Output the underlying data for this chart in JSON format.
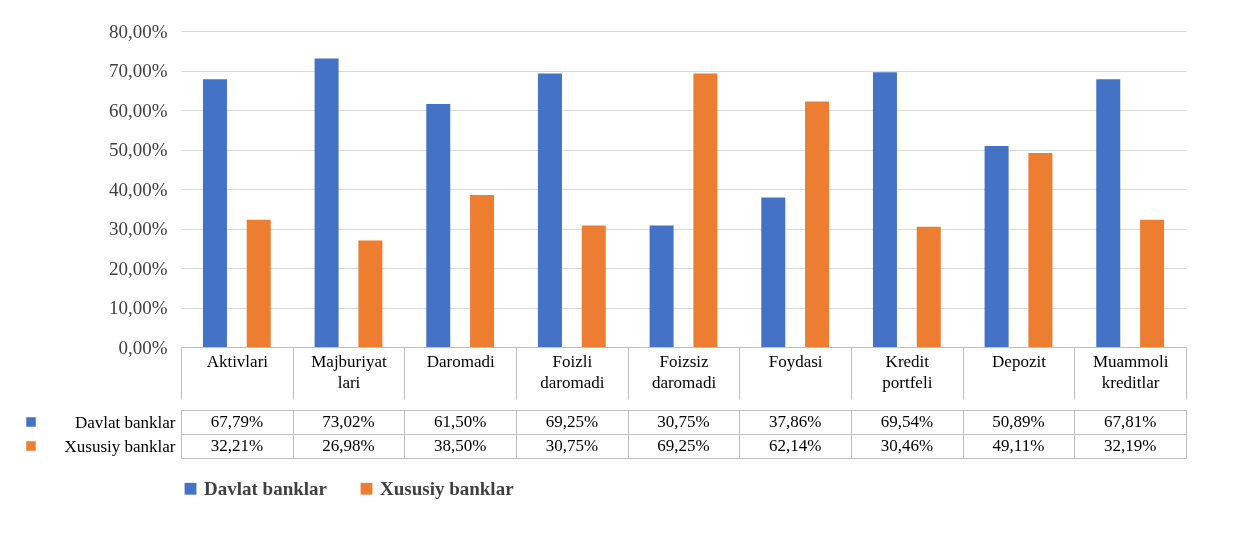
{
  "chart_data": {
    "type": "bar",
    "categories": [
      "Aktivlari",
      "Majburiyatlari",
      "Daromadi",
      "Foizli daromadi",
      "Foizsiz daromadi",
      "Foydasi",
      "Kredit portfeli",
      "Depozit",
      "Muammoli kreditlar"
    ],
    "series": [
      {
        "name": "Davlat banklar",
        "color": "#4472c4",
        "values": [
          67.79,
          73.02,
          61.5,
          69.25,
          30.75,
          37.86,
          69.54,
          50.89,
          67.81
        ],
        "value_labels": [
          "67,79%",
          "73,02%",
          "61,50%",
          "69,25%",
          "30,75%",
          "37,86%",
          "69,54%",
          "50,89%",
          "67,81%"
        ]
      },
      {
        "name": "Xususiy banklar",
        "color": "#ed7d31",
        "values": [
          32.21,
          26.98,
          38.5,
          30.75,
          69.25,
          62.14,
          30.46,
          49.11,
          32.19
        ],
        "value_labels": [
          "32,21%",
          "26,98%",
          "38,50%",
          "30,75%",
          "69,25%",
          "62,14%",
          "30,46%",
          "49,11%",
          "32,19%"
        ]
      }
    ],
    "ylim": [
      0,
      80
    ],
    "yticks": [
      {
        "value": 0,
        "label": "0,00%"
      },
      {
        "value": 10,
        "label": "10,00%"
      },
      {
        "value": 20,
        "label": "20,00%"
      },
      {
        "value": 30,
        "label": "30,00%"
      },
      {
        "value": 40,
        "label": "40,00%"
      },
      {
        "value": 50,
        "label": "50,00%"
      },
      {
        "value": 60,
        "label": "60,00%"
      },
      {
        "value": 70,
        "label": "70,00%"
      },
      {
        "value": 80,
        "label": "80,00%"
      }
    ],
    "grid": "y",
    "legend": "bottom"
  }
}
